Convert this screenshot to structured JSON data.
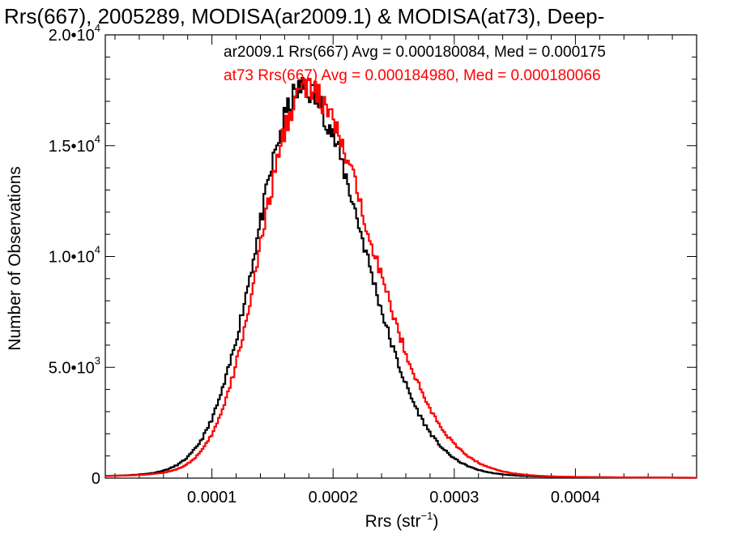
{
  "chart_data": {
    "type": "line",
    "step": true,
    "title": "Rrs(667), 2005289, MODISA(ar2009.1) & MODISA(at73), Deep-",
    "xlabel": "Rrs (str",
    "xlabel_sup": "−1",
    "xlabel_suffix": ")",
    "ylabel": "Number of Observations",
    "xlim": [
      1.2e-05,
      0.0005
    ],
    "ylim": [
      0,
      20000
    ],
    "x_ticks": [
      {
        "value": 0.0001,
        "label": "0.0001"
      },
      {
        "value": 0.0002,
        "label": "0.0002"
      },
      {
        "value": 0.0003,
        "label": "0.0003"
      },
      {
        "value": 0.0004,
        "label": "0.0004"
      }
    ],
    "y_ticks": [
      {
        "value": 0,
        "mant": "0",
        "sup": ""
      },
      {
        "value": 5000,
        "mant": "5.0•10",
        "sup": "3"
      },
      {
        "value": 10000,
        "mant": "1.0•10",
        "sup": "4"
      },
      {
        "value": 15000,
        "mant": "1.5•10",
        "sup": "4"
      },
      {
        "value": 20000,
        "mant": "2.0•10",
        "sup": "4"
      }
    ],
    "grid": false,
    "legend_position": "top-right",
    "series": [
      {
        "name": "ar2009.1 Rrs(667) Avg = 0.000180084, Med = 0.000175",
        "color": "#000000",
        "peak": 17000,
        "mode": 0.000175,
        "left_width": 3.8e-05,
        "right_width": 5e-05,
        "x": [
          1.2e-05,
          3e-05,
          5e-05,
          7e-05,
          9e-05,
          0.00011,
          0.00012,
          0.00013,
          0.00014,
          0.00015,
          0.00016,
          0.00017,
          0.000175,
          0.00018,
          0.00019,
          0.0002,
          0.00021,
          0.00022,
          0.00023,
          0.00025,
          0.00027,
          0.0003,
          0.00035,
          0.0004,
          0.00045,
          0.0005
        ],
        "y": [
          700,
          1300,
          2200,
          3300,
          5200,
          8000,
          9900,
          12000,
          13800,
          15600,
          16300,
          16800,
          17000,
          16400,
          15000,
          13500,
          11800,
          9800,
          7600,
          4600,
          3200,
          1900,
          800,
          400,
          200,
          100
        ]
      },
      {
        "name": "at73 Rrs(667) Avg = 0.000184980, Med = 0.000180066",
        "color": "#ff0000",
        "peak": 17000,
        "mode": 0.000177,
        "left_width": 3.6e-05,
        "right_width": 5.5e-05,
        "x": [
          1.2e-05,
          3e-05,
          5e-05,
          7e-05,
          9e-05,
          0.00011,
          0.00012,
          0.00013,
          0.00014,
          0.00015,
          0.00016,
          0.00017,
          0.000177,
          0.00018,
          0.00019,
          0.0002,
          0.00021,
          0.00022,
          0.00023,
          0.00025,
          0.00027,
          0.0003,
          0.00035,
          0.0004,
          0.00045,
          0.0005
        ],
        "y": [
          600,
          1100,
          1900,
          3000,
          4700,
          7300,
          9000,
          11100,
          13300,
          15200,
          16100,
          16800,
          17000,
          16700,
          15800,
          14500,
          12600,
          10600,
          8500,
          5200,
          3600,
          2100,
          950,
          420,
          200,
          100
        ]
      }
    ]
  }
}
